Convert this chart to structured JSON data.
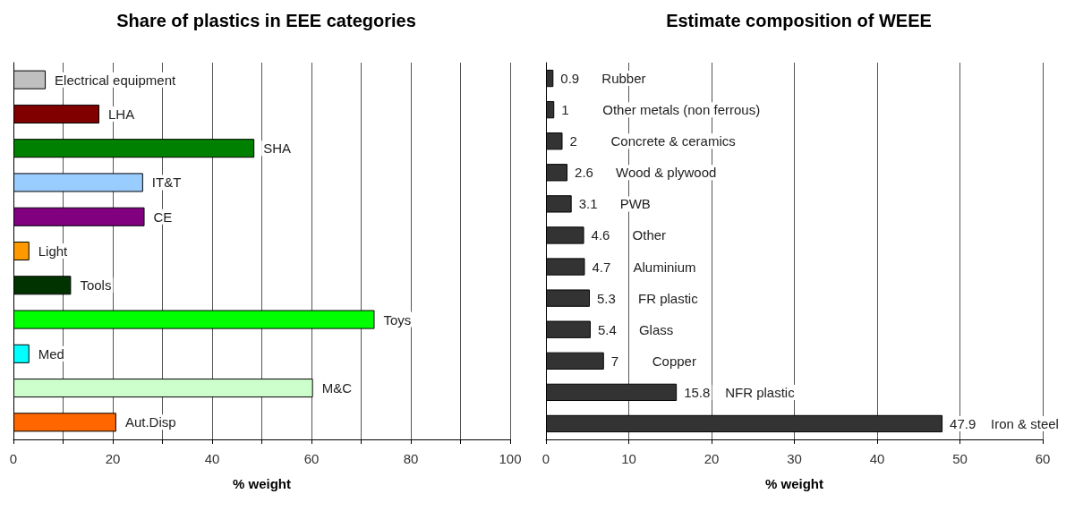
{
  "chart_data": [
    {
      "type": "bar",
      "orientation": "horizontal",
      "title": "Share of plastics in EEE categories",
      "xlabel": "% weight",
      "categories": [
        "Electrical equipment",
        "LHA",
        "SHA",
        "IT&T",
        "CE",
        "Light",
        "Tools",
        "Toys",
        "Med",
        "M&C",
        "Aut.Disp"
      ],
      "values": [
        6.5,
        17.3,
        48.5,
        26.1,
        26.4,
        3.2,
        11.6,
        72.7,
        3.2,
        60.3,
        20.7
      ],
      "colors": [
        "#c0c0c0",
        "#800000",
        "#008000",
        "#99ccff",
        "#800080",
        "#ff9900",
        "#003300",
        "#00ff00",
        "#00ffff",
        "#ccffcc",
        "#ff6600"
      ],
      "xlim": [
        0,
        100
      ],
      "xticks": [
        0,
        {
          "value": 10,
          "label": null
        },
        20,
        {
          "value": 30,
          "label": null
        },
        40,
        {
          "value": 50,
          "label": null
        },
        60,
        {
          "value": 70,
          "label": null
        },
        80,
        {
          "value": 90,
          "label": null
        },
        100
      ],
      "grid": "x",
      "tick_labels": "x"
    },
    {
      "type": "bar",
      "orientation": "horizontal",
      "title": "Estimate composition of WEEE",
      "xlabel": "% weight",
      "categories": [
        "Rubber",
        "Other metals (non ferrous)",
        "Concrete & ceramics",
        "Wood & plywood",
        "PWB",
        "Other",
        "Aluminium",
        "FR plastic",
        "Glass",
        "Copper",
        "NFR plastic",
        "Iron & steel"
      ],
      "values": [
        0.9,
        1,
        2,
        2.6,
        3.1,
        4.6,
        4.7,
        5.3,
        5.4,
        7,
        15.8,
        47.9
      ],
      "color": "#333333",
      "data_labels": true,
      "xlim": [
        0,
        60
      ],
      "xticks": [
        0,
        10,
        20,
        30,
        40,
        50,
        60
      ],
      "grid": "x",
      "tick_labels": "x"
    }
  ]
}
